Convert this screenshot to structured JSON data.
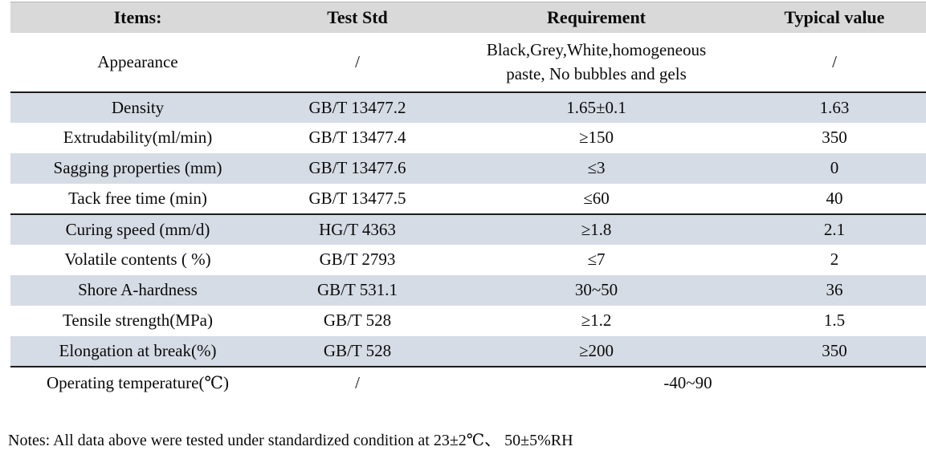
{
  "colors": {
    "header_bg": "#d9d9d9",
    "row_shade": "#d6dce5",
    "divider": "#1c1c1c",
    "text": "#0a0a0a"
  },
  "table": {
    "headers": [
      "Items:",
      "Test Std",
      "Requirement",
      "Typical value"
    ],
    "rows": [
      {
        "item": "Appearance",
        "test_std": "/",
        "requirement": "Black,Grey,White,homogeneous\npaste, No bubbles and gels",
        "typical": "/",
        "shaded": false,
        "tall": true,
        "divider_below": true
      },
      {
        "item": "Density",
        "test_std": "GB/T 13477.2",
        "requirement": "1.65±0.1",
        "typical": "1.63",
        "shaded": true
      },
      {
        "item": "Extrudability(ml/min)",
        "test_std": "GB/T 13477.4",
        "requirement": "≥150",
        "typical": "350",
        "shaded": false
      },
      {
        "item": "Sagging properties (mm)",
        "test_std": "GB/T 13477.6",
        "requirement": "≤3",
        "typical": "0",
        "shaded": true
      },
      {
        "item": "Tack free time (min)",
        "test_std": "GB/T 13477.5",
        "requirement": "≤60",
        "typical": "40",
        "shaded": false,
        "divider_below": true
      },
      {
        "item": "Curing speed (mm/d)",
        "test_std": "HG/T 4363",
        "requirement": "≥1.8",
        "typical": "2.1",
        "shaded": true
      },
      {
        "item": "Volatile contents ( %)",
        "test_std": "GB/T 2793",
        "requirement": "≤7",
        "typical": "2",
        "shaded": false
      },
      {
        "item": "Shore A-hardness",
        "test_std": "GB/T 531.1",
        "requirement": "30~50",
        "typical": "36",
        "shaded": true
      },
      {
        "item": "Tensile strength(MPa)",
        "test_std": "GB/T 528",
        "requirement": "≥1.2",
        "typical": "1.5",
        "shaded": false
      },
      {
        "item": "Elongation at break(%)",
        "test_std": "GB/T 528",
        "requirement": "≥200",
        "typical": "350",
        "shaded": true,
        "divider_below": true
      },
      {
        "item": "Operating temperature(℃)",
        "test_std": "/",
        "requirement": "-40~90",
        "typical": null,
        "merged_requirement": true,
        "shaded": false,
        "last": true
      }
    ]
  },
  "notes": "Notes: All data above were tested under standardized condition at 23±2℃、 50±5%RH"
}
